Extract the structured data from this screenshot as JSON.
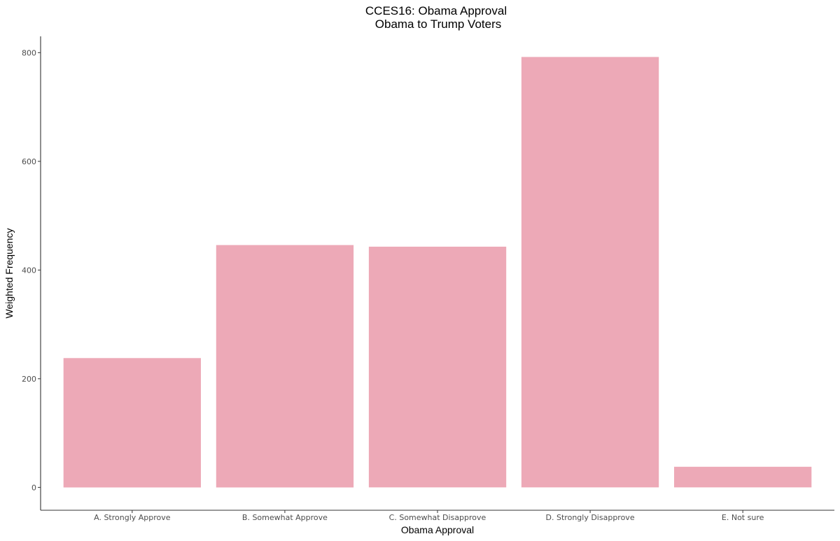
{
  "chart_data": {
    "type": "bar",
    "title": "CCES16: Obama Approval",
    "subtitle": "Obama to Trump Voters",
    "xlabel": "Obama Approval",
    "ylabel": "Weighted Frequency",
    "categories": [
      "A. Strongly Approve",
      "B. Somewhat Approve",
      "C. Somewhat Disapprove",
      "D. Strongly Disapprove",
      "E. Not sure"
    ],
    "values": [
      238,
      446,
      443,
      792,
      38
    ],
    "yticks": [
      0,
      200,
      400,
      600,
      800
    ],
    "ylim": [
      -42,
      830
    ],
    "grid": false,
    "legend": "none",
    "bar_color": "#eda9b7"
  }
}
